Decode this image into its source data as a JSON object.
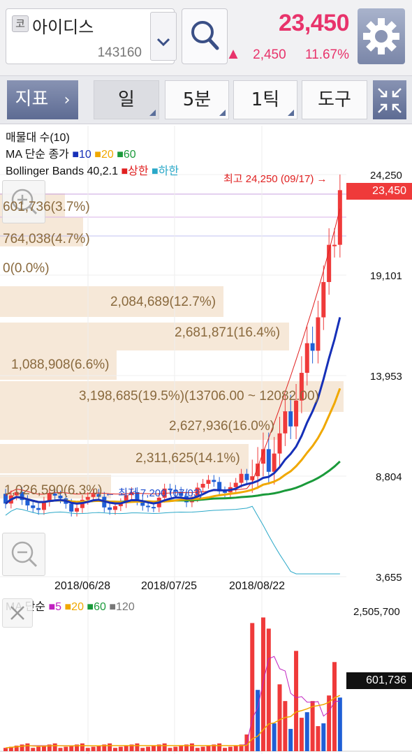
{
  "stock": {
    "market_badge": "코",
    "name": "아이디스",
    "code": "143160",
    "price": "23,450",
    "change_arrow": "▲",
    "change": "2,450",
    "change_pct": "11.67%"
  },
  "toolbar": {
    "indicator_label": "지표",
    "indicator_arrow": "›",
    "period_daily": "일",
    "period_5min": "5분",
    "period_1tick": "1틱",
    "tools": "도구"
  },
  "legend": {
    "volume_profile": "매물대 수(10)",
    "ma_prefix": "MA 단순 종가",
    "ma_10": "10",
    "ma_20": "20",
    "ma_60": "60",
    "bb_prefix": "Bollinger Bands 40,2.1",
    "bb_upper": "상한",
    "bb_lower": "하한",
    "vol_ma_prefix": "MA 단순",
    "vol_ma_5": "5",
    "vol_ma_20": "20",
    "vol_ma_60": "60",
    "vol_ma_120": "120"
  },
  "colors": {
    "up": "#ef3a3a",
    "down": "#1f5fd6",
    "ma10": "#1630b8",
    "ma20": "#f0a800",
    "ma60": "#1a9a3a",
    "bb_upper": "#e02020",
    "bb_lower": "#2aa8c8",
    "vol_ma5": "#c020c0",
    "vol_ma20": "#f0a800",
    "vol_ma60": "#1a9a3a",
    "vol_ma120": "#777777",
    "accent": "#e8336b"
  },
  "annotations": {
    "high": "최고 24,250 (09/17) →",
    "low": "← 최저 7,200 (07/03)",
    "current_price_tag": "23,450",
    "current_volume_tag": "601,736"
  },
  "volume_profile": [
    {
      "label": "601,736(3.7%)",
      "pct": 3.7
    },
    {
      "label": "764,038(4.7%)",
      "pct": 4.7
    },
    {
      "label": "0(0.0%)",
      "pct": 0.0
    },
    {
      "label": "2,084,689(12.7%)",
      "pct": 12.7
    },
    {
      "label": "2,681,871(16.4%)",
      "pct": 16.4
    },
    {
      "label": "1,088,908(6.6%)",
      "pct": 6.6
    },
    {
      "label": "3,198,685(19.5%)(13706.00 ~ 12082.00)",
      "pct": 19.5
    },
    {
      "label": "2,627,936(16.0%)",
      "pct": 16.0
    },
    {
      "label": "2,311,625(14.1%)",
      "pct": 14.1
    },
    {
      "label": "1,026,590(6.3%)",
      "pct": 6.3
    }
  ],
  "chart_data": [
    {
      "type": "candlestick",
      "y_ticks": [
        "24,250",
        "19,101",
        "13,953",
        "8,804",
        "3,655"
      ],
      "ylim": [
        3655,
        24250
      ],
      "x_ticks": [
        "2018/06/28",
        "2018/07/25",
        "2018/08/22"
      ],
      "high": 24250,
      "low": 7200,
      "last_close": 23450
    },
    {
      "type": "bar",
      "y_ticks": [
        "2,505,700"
      ],
      "last_value": 601736
    }
  ]
}
